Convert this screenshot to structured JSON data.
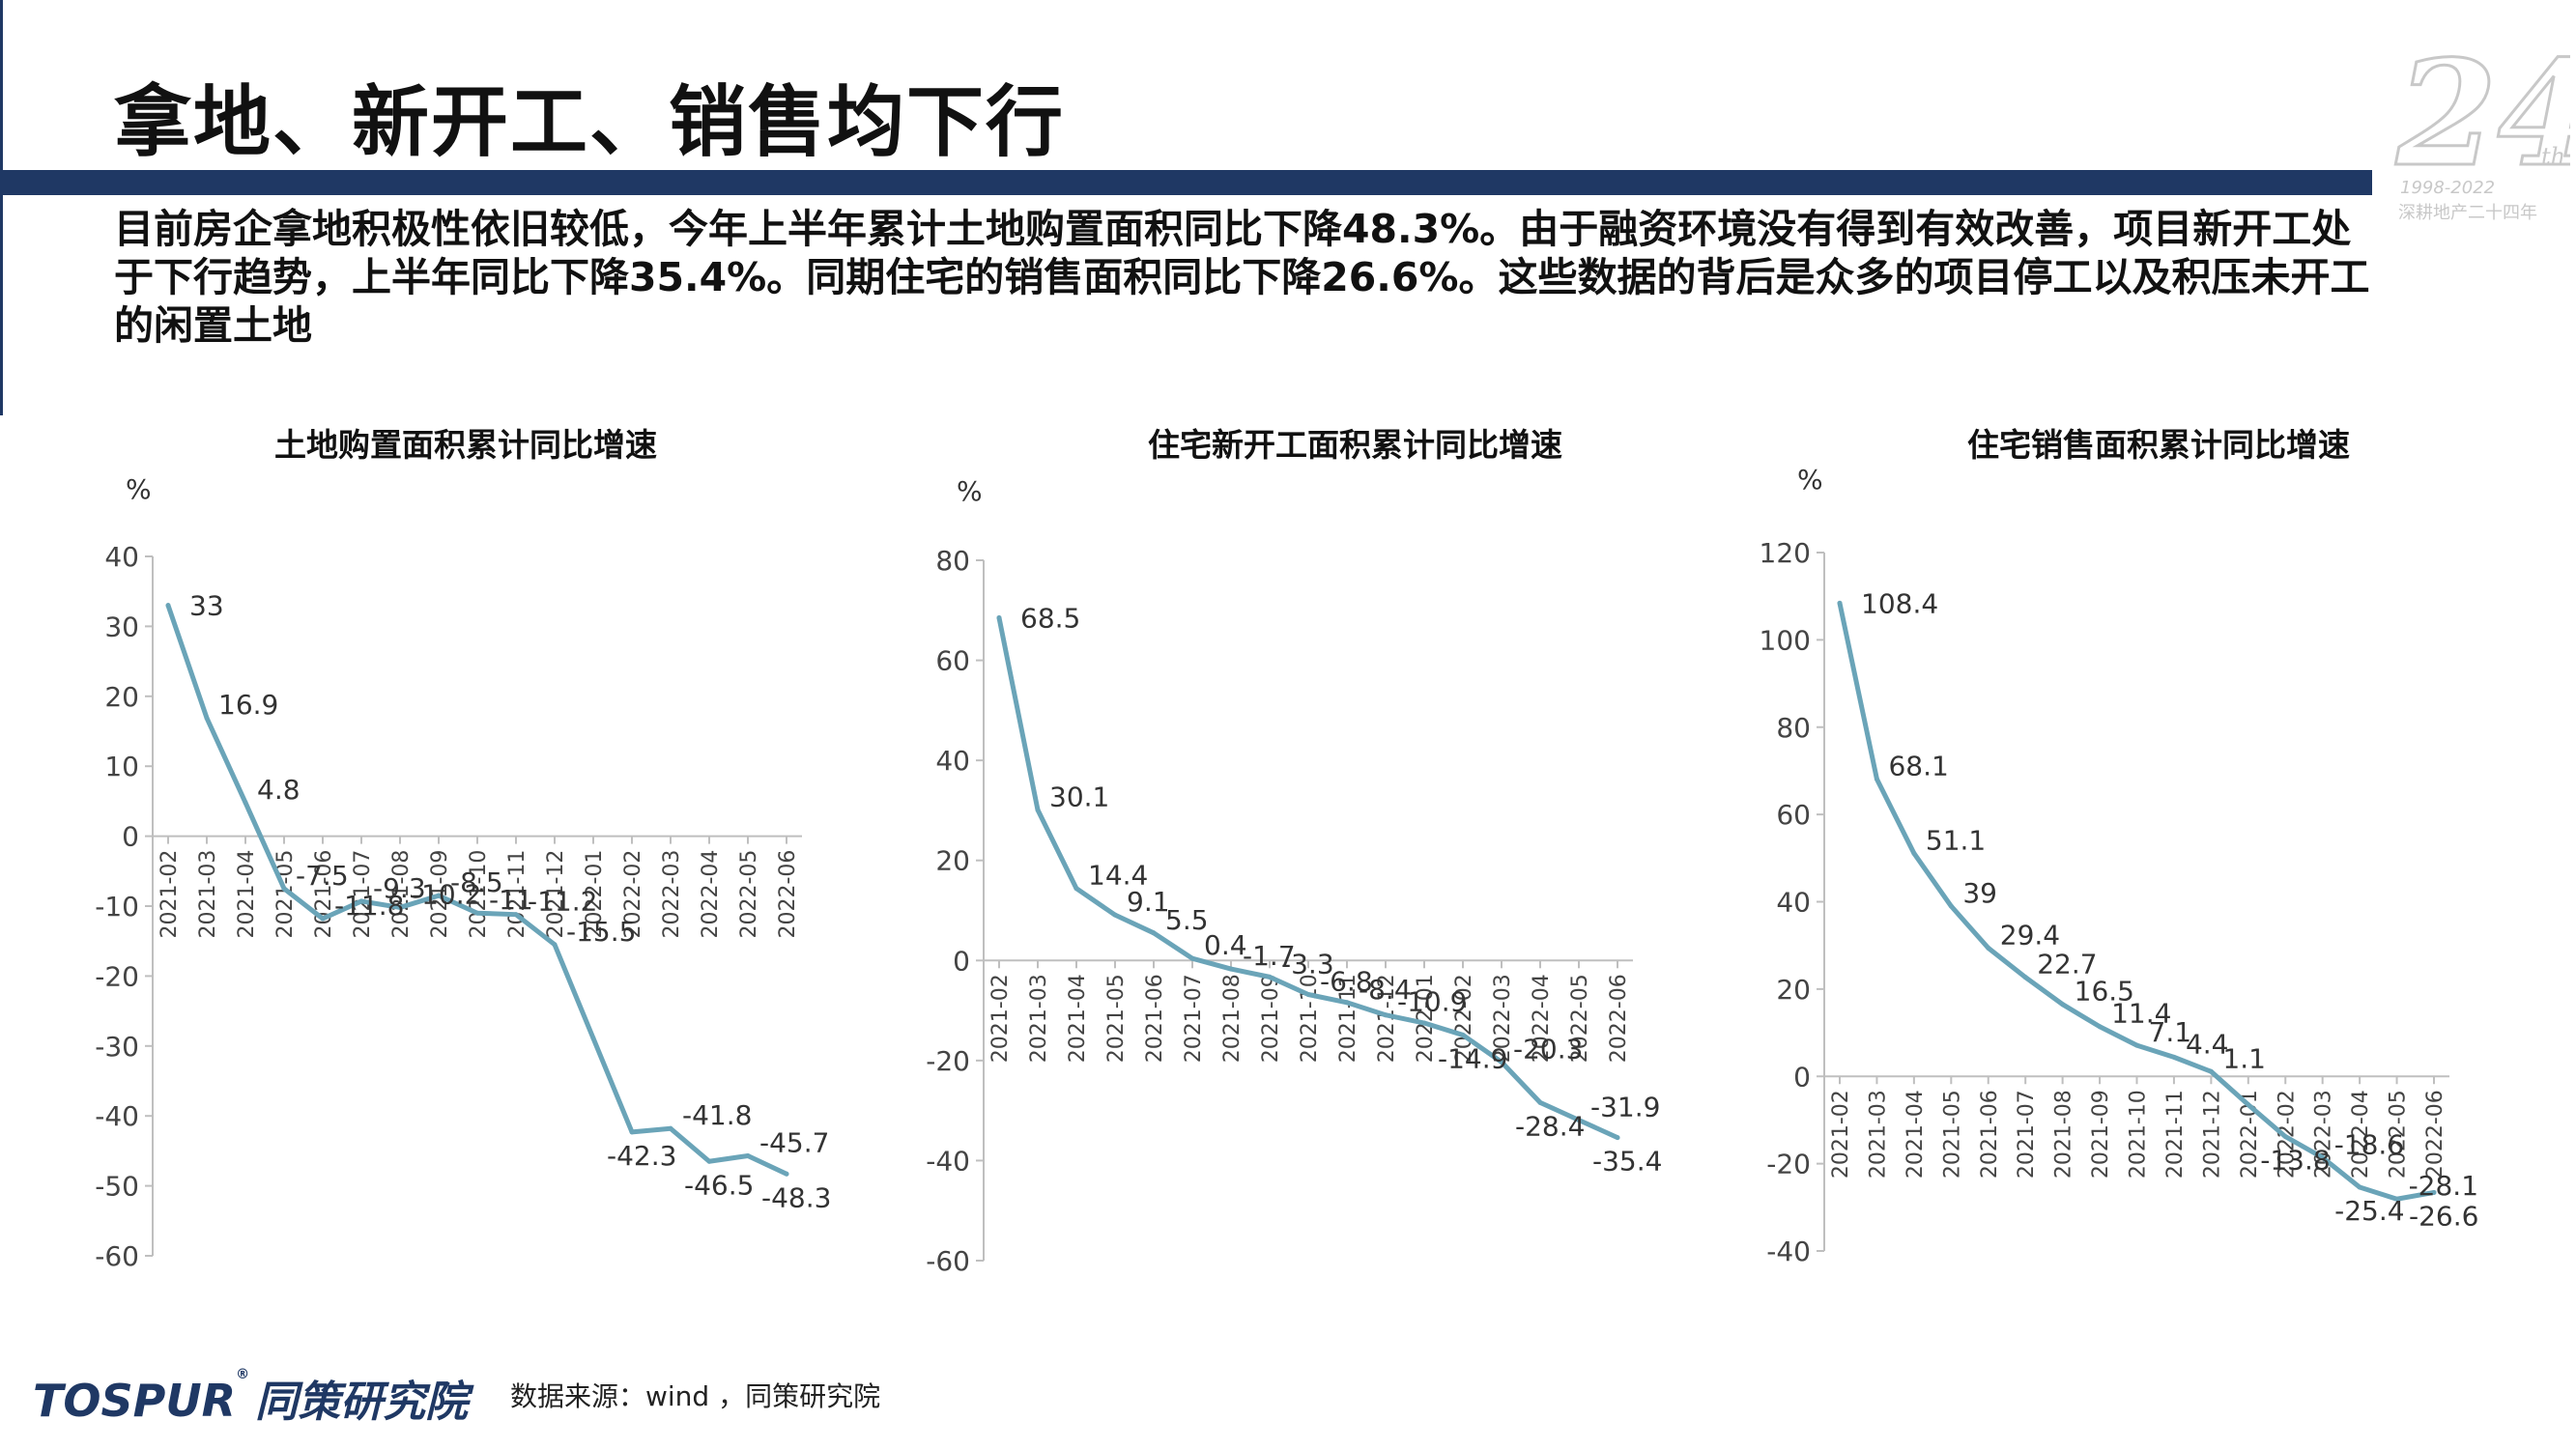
{
  "page": {
    "title": "拿地、新开工、销售均下行",
    "summary": "目前房企拿地积极性依旧较低，今年上半年累计土地购置面积同比下降48.3%。由于融资环境没有得到有效改善，项目新开工处于下行趋势，上半年同比下降35.4%。同期住宅的销售面积同比下降26.6%。这些数据的背后是众多的项目停工以及积压未开工的闲置土地",
    "source": "数据来源：wind ，同策研究院",
    "footer_logo": "TOSPUR",
    "footer_logo_cn": "同策研究院",
    "anniversary": "24",
    "anniversary_sup": "th",
    "anniversary_years": "1998-2022",
    "anniversary_caption": "深耕地产二十四年"
  },
  "colors": {
    "brand": "#1f3864",
    "line": "#6aa4b8",
    "axis": "#bfbfbf"
  },
  "chart_data": [
    {
      "type": "line",
      "title": "土地购置面积累计同比增速",
      "ylabel": "%",
      "ylim": [
        -60,
        40
      ],
      "yticks": [
        40,
        30,
        20,
        10,
        0,
        -10,
        -20,
        -30,
        -40,
        -50,
        -60
      ],
      "x": [
        "2021-02",
        "2021-03",
        "2021-04",
        "2021-05",
        "2021-06",
        "2021-07",
        "2021-08",
        "2021-09",
        "2021-10",
        "2021-11",
        "2021-12",
        "2022-01",
        "2022-02",
        "2022-03",
        "2022-04",
        "2022-05",
        "2022-06"
      ],
      "values": [
        33,
        16.9,
        4.8,
        -7.5,
        -11.8,
        -9.3,
        -10.2,
        -8.5,
        -11,
        -11.2,
        -15.5,
        -28.9,
        -42.3,
        -41.8,
        -46.5,
        -45.7,
        -48.3
      ],
      "labels": [
        "33",
        "16.9",
        "4.8",
        "-7.5",
        "-11.8",
        "-9.3",
        "-10.2",
        "-8.5",
        "-11",
        "-11.2",
        "-15.5",
        "",
        "-42.3",
        "-41.8",
        "-46.5",
        "-45.7",
        "-48.3"
      ],
      "grid": false
    },
    {
      "type": "line",
      "title": "住宅新开工面积累计同比增速",
      "ylabel": "%",
      "ylim": [
        -60,
        80
      ],
      "yticks": [
        80,
        60,
        40,
        20,
        0,
        -20,
        -40,
        -60
      ],
      "x": [
        "2021-02",
        "2021-03",
        "2021-04",
        "2021-05",
        "2021-06",
        "2021-07",
        "2021-08",
        "2021-09",
        "2021-10",
        "2021-11",
        "2021-12",
        "2022-01",
        "2022-02",
        "2022-03",
        "2022-04",
        "2022-05",
        "2022-06"
      ],
      "values": [
        68.5,
        30.1,
        14.4,
        9.1,
        5.5,
        0.4,
        -1.7,
        -3.3,
        -6.8,
        -8.4,
        -10.9,
        -12.5,
        -14.9,
        -20.3,
        -28.4,
        -31.9,
        -35.4
      ],
      "labels": [
        "68.5",
        "30.1",
        "14.4",
        "9.1",
        "5.5",
        "0.4",
        "-1.7",
        "-3.3",
        "-6.8",
        "-8.4",
        "-10.9",
        "",
        "-14.9",
        "-20.3",
        "-28.4",
        "-31.9",
        "-35.4"
      ],
      "grid": false
    },
    {
      "type": "line",
      "title": "住宅销售面积累计同比增速",
      "ylabel": "%",
      "ylim": [
        -40,
        120
      ],
      "yticks": [
        120,
        100,
        80,
        60,
        40,
        20,
        0,
        -20,
        -40
      ],
      "x": [
        "2021-02",
        "2021-03",
        "2021-04",
        "2021-05",
        "2021-06",
        "2021-07",
        "2021-08",
        "2021-09",
        "2021-10",
        "2021-11",
        "2021-12",
        "2022-01",
        "2022-02",
        "2022-03",
        "2022-04",
        "2022-05",
        "2022-06"
      ],
      "values": [
        108.4,
        68.1,
        51.1,
        39,
        29.4,
        22.7,
        16.5,
        11.4,
        7.1,
        4.4,
        1.1,
        -6.5,
        -13.8,
        -18.6,
        -25.4,
        -28.1,
        -26.6
      ],
      "labels": [
        "108.4",
        "68.1",
        "51.1",
        "39",
        "29.4",
        "22.7",
        "16.5",
        "11.4",
        "7.1",
        "4.4",
        "1.1",
        "",
        "-13.8",
        "-18.6",
        "-25.4",
        "-28.1",
        "-26.6"
      ],
      "grid": false
    }
  ]
}
